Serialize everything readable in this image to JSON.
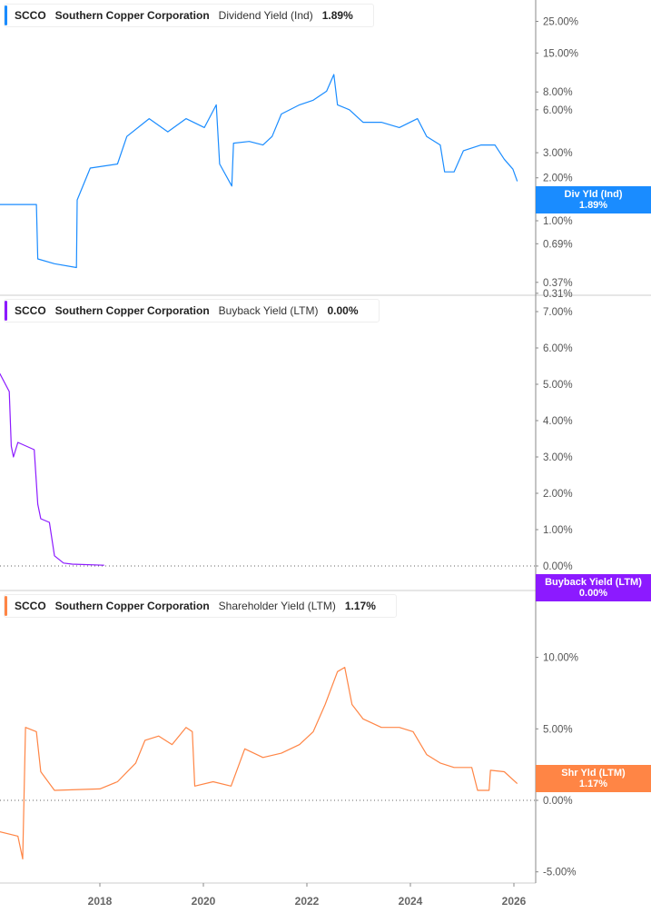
{
  "colors": {
    "div": "#1a8cff",
    "buy": "#8c1aff",
    "shr": "#ff8545",
    "axis": "#888",
    "grid": "#ccc"
  },
  "chart_data": [
    {
      "type": "line",
      "ticker": "SCCO",
      "company": "Southern Copper Corporation",
      "metric": "Dividend Yield (Ind)",
      "current": "1.89%",
      "badge": {
        "label": "Div Yld (Ind)",
        "value": "1.89%"
      },
      "yscale": "log",
      "yticks": [
        {
          "v": 25,
          "label": "25.00%"
        },
        {
          "v": 15,
          "label": "15.00%"
        },
        {
          "v": 8,
          "label": "8.00%"
        },
        {
          "v": 6,
          "label": "6.00%"
        },
        {
          "v": 3,
          "label": "3.00%"
        },
        {
          "v": 2,
          "label": "2.00%"
        },
        {
          "v": 1,
          "label": "1.00%"
        },
        {
          "v": 0.69,
          "label": "0.69%"
        },
        {
          "v": 0.37,
          "label": "0.37%"
        },
        {
          "v": 0.31,
          "label": "0.31%"
        }
      ],
      "points": [
        [
          "2016-01-25",
          1.3
        ],
        [
          "2016-10-10",
          1.3
        ],
        [
          "2016-10-20",
          0.54
        ],
        [
          "2017-02-15",
          0.5
        ],
        [
          "2017-07-20",
          0.47
        ],
        [
          "2017-07-25",
          1.4
        ],
        [
          "2017-10-25",
          2.34
        ],
        [
          "2018-05-05",
          2.5
        ],
        [
          "2018-07-10",
          3.9
        ],
        [
          "2018-12-15",
          5.2
        ],
        [
          "2019-04-25",
          4.2
        ],
        [
          "2019-09-01",
          5.2
        ],
        [
          "2020-01-08",
          4.5
        ],
        [
          "2020-04-01",
          6.5
        ],
        [
          "2020-04-25",
          2.5
        ],
        [
          "2020-07-20",
          1.75
        ],
        [
          "2020-08-01",
          3.5
        ],
        [
          "2020-11-20",
          3.6
        ],
        [
          "2021-02-25",
          3.4
        ],
        [
          "2021-05-01",
          3.9
        ],
        [
          "2021-07-05",
          5.6
        ],
        [
          "2021-11-10",
          6.5
        ],
        [
          "2022-02-15",
          7.0
        ],
        [
          "2022-05-20",
          8.1
        ],
        [
          "2022-07-10",
          10.6
        ],
        [
          "2022-08-05",
          6.5
        ],
        [
          "2022-10-28",
          6.0
        ],
        [
          "2023-02-01",
          4.9
        ],
        [
          "2023-06-10",
          4.9
        ],
        [
          "2023-10-15",
          4.5
        ],
        [
          "2024-02-20",
          5.2
        ],
        [
          "2024-04-25",
          3.9
        ],
        [
          "2024-07-30",
          3.4
        ],
        [
          "2024-08-30",
          2.2
        ],
        [
          "2024-11-05",
          2.2
        ],
        [
          "2025-01-10",
          3.1
        ],
        [
          "2025-05-15",
          3.4
        ],
        [
          "2025-08-20",
          3.4
        ],
        [
          "2025-10-25",
          2.7
        ],
        [
          "2025-12-25",
          2.3
        ],
        [
          "2026-01-25",
          1.89
        ]
      ]
    },
    {
      "type": "line",
      "ticker": "SCCO",
      "company": "Southern Copper Corporation",
      "metric": "Buyback Yield (LTM)",
      "current": "0.00%",
      "badge": {
        "label": "Buyback Yield (LTM)",
        "value": "0.00%"
      },
      "yscale": "linear",
      "yticks": [
        {
          "v": 7,
          "label": "7.00%"
        },
        {
          "v": 6,
          "label": "6.00%"
        },
        {
          "v": 5,
          "label": "5.00%"
        },
        {
          "v": 4,
          "label": "4.00%"
        },
        {
          "v": 3,
          "label": "3.00%"
        },
        {
          "v": 2,
          "label": "2.00%"
        },
        {
          "v": 1,
          "label": "1.00%"
        },
        {
          "v": 0,
          "label": "0.00%"
        }
      ],
      "points": [
        [
          "2016-01-25",
          5.3
        ],
        [
          "2016-04-01",
          4.8
        ],
        [
          "2016-04-15",
          3.3
        ],
        [
          "2016-05-01",
          3.0
        ],
        [
          "2016-06-01",
          3.4
        ],
        [
          "2016-09-25",
          3.2
        ],
        [
          "2016-10-20",
          1.7
        ],
        [
          "2016-11-10",
          1.3
        ],
        [
          "2017-01-10",
          1.2
        ],
        [
          "2017-02-15",
          0.28
        ],
        [
          "2017-04-20",
          0.08
        ],
        [
          "2017-06-20",
          0.05
        ],
        [
          "2018-02-01",
          0.02
        ]
      ]
    },
    {
      "type": "line",
      "ticker": "SCCO",
      "company": "Southern Copper Corporation",
      "metric": "Shareholder Yield (LTM)",
      "current": "1.17%",
      "badge": {
        "label": "Shr Yld (LTM)",
        "value": "1.17%"
      },
      "yscale": "linear",
      "yticks": [
        {
          "v": 10,
          "label": "10.00%"
        },
        {
          "v": 5,
          "label": "5.00%"
        },
        {
          "v": 0,
          "label": "0.00%"
        },
        {
          "v": -5,
          "label": "-5.00%"
        }
      ],
      "points": [
        [
          "2016-01-25",
          -2.2
        ],
        [
          "2016-06-01",
          -2.5
        ],
        [
          "2016-07-05",
          -4.1
        ],
        [
          "2016-07-25",
          5.1
        ],
        [
          "2016-10-10",
          4.8
        ],
        [
          "2016-11-10",
          2.0
        ],
        [
          "2017-02-15",
          0.7
        ],
        [
          "2018-01-01",
          0.8
        ],
        [
          "2018-05-05",
          1.3
        ],
        [
          "2018-09-10",
          2.6
        ],
        [
          "2018-11-15",
          4.2
        ],
        [
          "2019-02-20",
          4.5
        ],
        [
          "2019-05-25",
          3.9
        ],
        [
          "2019-09-01",
          5.1
        ],
        [
          "2019-10-15",
          4.8
        ],
        [
          "2019-11-01",
          1.0
        ],
        [
          "2020-03-10",
          1.3
        ],
        [
          "2020-07-15",
          1.0
        ],
        [
          "2020-10-20",
          3.6
        ],
        [
          "2021-02-25",
          3.0
        ],
        [
          "2021-07-05",
          3.3
        ],
        [
          "2021-11-10",
          3.9
        ],
        [
          "2022-02-15",
          4.8
        ],
        [
          "2022-05-10",
          6.7
        ],
        [
          "2022-08-05",
          9.0
        ],
        [
          "2022-09-25",
          9.3
        ],
        [
          "2022-11-15",
          6.7
        ],
        [
          "2023-02-01",
          5.7
        ],
        [
          "2023-06-10",
          5.1
        ],
        [
          "2023-10-15",
          5.1
        ],
        [
          "2024-01-20",
          4.8
        ],
        [
          "2024-04-25",
          3.2
        ],
        [
          "2024-08-01",
          2.6
        ],
        [
          "2024-11-05",
          2.3
        ],
        [
          "2025-03-10",
          2.3
        ],
        [
          "2025-04-20",
          0.7
        ],
        [
          "2025-07-10",
          0.7
        ],
        [
          "2025-07-20",
          2.1
        ],
        [
          "2025-10-25",
          2.0
        ],
        [
          "2026-01-25",
          1.17
        ]
      ]
    }
  ],
  "xaxis": {
    "ticks": [
      {
        "year": 2018,
        "label": "2018"
      },
      {
        "year": 2020,
        "label": "2020"
      },
      {
        "year": 2022,
        "label": "2022"
      },
      {
        "year": 2024,
        "label": "2024"
      },
      {
        "year": 2026,
        "label": "2026"
      }
    ]
  }
}
